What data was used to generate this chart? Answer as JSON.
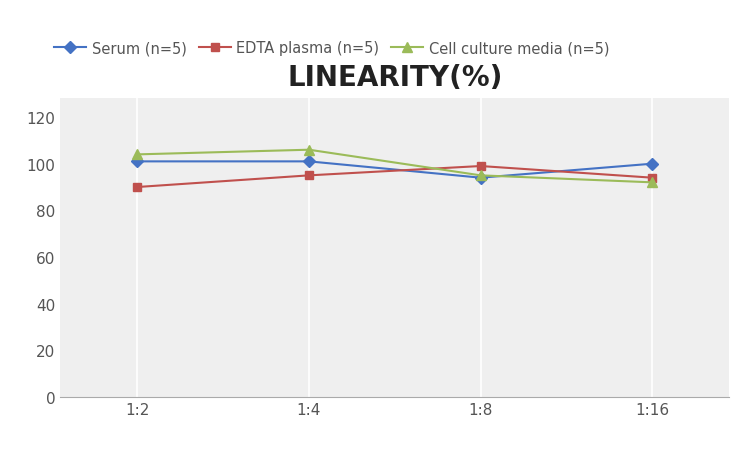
{
  "title": "LINEARITY(%)",
  "x_labels": [
    "1:2",
    "1:4",
    "1:8",
    "1:16"
  ],
  "x_positions": [
    0,
    1,
    2,
    3
  ],
  "series": [
    {
      "label": "Serum (n=5)",
      "values": [
        101,
        101,
        94,
        100
      ],
      "color": "#4472C4",
      "marker": "D",
      "markersize": 6,
      "linewidth": 1.5
    },
    {
      "label": "EDTA plasma (n=5)",
      "values": [
        90,
        95,
        99,
        94
      ],
      "color": "#C0504D",
      "marker": "s",
      "markersize": 6,
      "linewidth": 1.5
    },
    {
      "label": "Cell culture media (n=5)",
      "values": [
        104,
        106,
        95,
        92
      ],
      "color": "#9BBB59",
      "marker": "^",
      "markersize": 7,
      "linewidth": 1.5
    }
  ],
  "ylim": [
    0,
    128
  ],
  "yticks": [
    0,
    20,
    40,
    60,
    80,
    100,
    120
  ],
  "plot_bg_color": "#EFEFEF",
  "fig_bg_color": "#FFFFFF",
  "grid_color": "#FFFFFF",
  "title_fontsize": 20,
  "legend_fontsize": 10.5,
  "tick_fontsize": 11,
  "spine_color": "#AAAAAA"
}
